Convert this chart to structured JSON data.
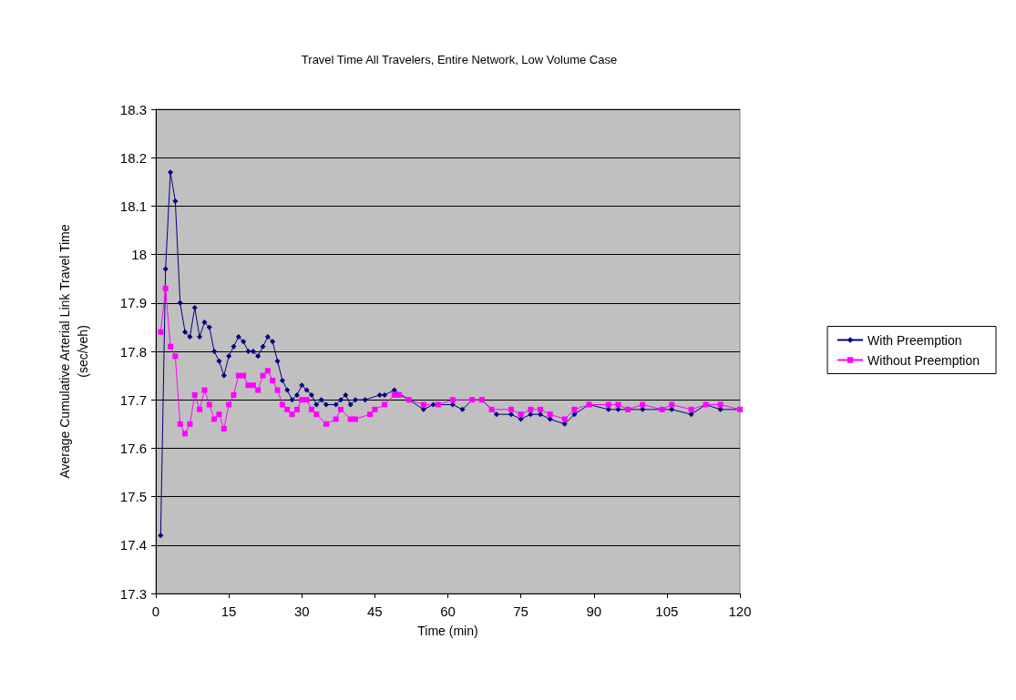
{
  "chart_data": {
    "type": "line",
    "title": "Travel Time All Travelers, Entire Network, Low Volume Case",
    "xlabel": "Time (min)",
    "ylabel": "Average Cumulative Arterial Link Travel Time\n(sec/veh)",
    "xlim": [
      0,
      120
    ],
    "xticks": [
      0,
      15,
      30,
      45,
      60,
      75,
      90,
      105,
      120
    ],
    "ylim": [
      17.3,
      18.3
    ],
    "yticks": [
      17.3,
      17.4,
      17.5,
      17.6,
      17.7,
      17.8,
      17.9,
      18,
      18.1,
      18.2,
      18.3
    ],
    "grid": "y",
    "legend": "right",
    "line_style": "solid",
    "series": [
      {
        "name": "With Preemption",
        "color": "#000080",
        "marker": "diamond",
        "x": [
          1,
          2,
          3,
          4,
          5,
          6,
          7,
          8,
          9,
          10,
          11,
          12,
          13,
          14,
          15,
          16,
          17,
          18,
          19,
          20,
          21,
          22,
          23,
          24,
          25,
          26,
          27,
          28,
          29,
          30,
          31,
          32,
          33,
          34,
          35,
          37,
          38,
          39,
          40,
          41,
          43,
          46,
          47,
          49,
          52,
          55,
          57,
          61,
          63,
          65,
          67,
          70,
          73,
          75,
          77,
          79,
          81,
          84,
          86,
          89,
          93,
          95,
          97,
          100,
          104,
          106,
          110,
          113,
          116,
          120
        ],
        "values": [
          17.42,
          17.97,
          18.17,
          18.11,
          17.9,
          17.84,
          17.83,
          17.89,
          17.83,
          17.86,
          17.85,
          17.8,
          17.78,
          17.75,
          17.79,
          17.81,
          17.83,
          17.82,
          17.8,
          17.8,
          17.79,
          17.81,
          17.83,
          17.82,
          17.78,
          17.74,
          17.72,
          17.7,
          17.71,
          17.73,
          17.72,
          17.71,
          17.69,
          17.7,
          17.69,
          17.69,
          17.7,
          17.71,
          17.69,
          17.7,
          17.7,
          17.71,
          17.71,
          17.72,
          17.7,
          17.68,
          17.69,
          17.69,
          17.68,
          17.7,
          17.7,
          17.67,
          17.67,
          17.66,
          17.67,
          17.67,
          17.66,
          17.65,
          17.67,
          17.69,
          17.68,
          17.68,
          17.68,
          17.68,
          17.68,
          17.68,
          17.67,
          17.69,
          17.68,
          17.68
        ]
      },
      {
        "name": "Without Preemption",
        "color": "#ff00ff",
        "marker": "square",
        "x": [
          1,
          2,
          3,
          4,
          5,
          6,
          7,
          8,
          9,
          10,
          11,
          12,
          13,
          14,
          15,
          16,
          17,
          18,
          19,
          20,
          21,
          22,
          23,
          24,
          25,
          26,
          27,
          28,
          29,
          30,
          31,
          32,
          33,
          35,
          37,
          38,
          40,
          41,
          44,
          45,
          47,
          49,
          50,
          52,
          55,
          58,
          61,
          65,
          67,
          69,
          73,
          75,
          77,
          79,
          81,
          84,
          86,
          89,
          93,
          95,
          97,
          100,
          104,
          106,
          110,
          113,
          116,
          120
        ],
        "values": [
          17.84,
          17.93,
          17.81,
          17.79,
          17.65,
          17.63,
          17.65,
          17.71,
          17.68,
          17.72,
          17.69,
          17.66,
          17.67,
          17.64,
          17.69,
          17.71,
          17.75,
          17.75,
          17.73,
          17.73,
          17.72,
          17.75,
          17.76,
          17.74,
          17.72,
          17.69,
          17.68,
          17.67,
          17.68,
          17.7,
          17.7,
          17.68,
          17.67,
          17.65,
          17.66,
          17.68,
          17.66,
          17.66,
          17.67,
          17.68,
          17.69,
          17.71,
          17.71,
          17.7,
          17.69,
          17.69,
          17.7,
          17.7,
          17.7,
          17.68,
          17.68,
          17.67,
          17.68,
          17.68,
          17.67,
          17.66,
          17.68,
          17.69,
          17.69,
          17.69,
          17.68,
          17.69,
          17.68,
          17.69,
          17.68,
          17.69,
          17.69,
          17.68
        ]
      }
    ]
  }
}
